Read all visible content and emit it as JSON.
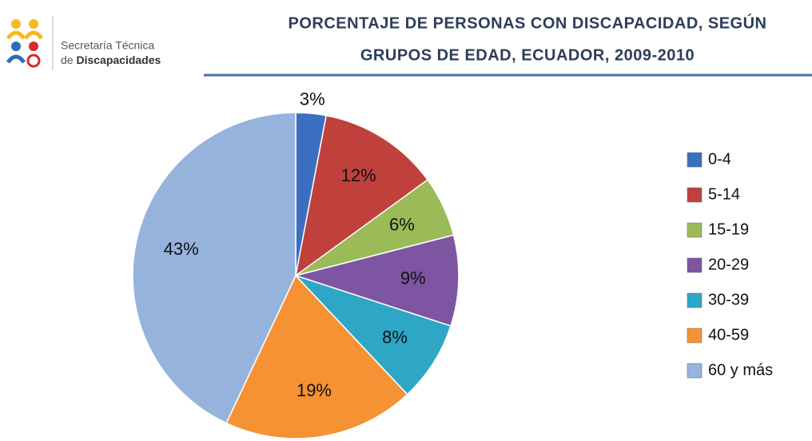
{
  "logo": {
    "line1": "Secretaría Técnica",
    "line2_prefix": "de",
    "line2_bold": "Discapacidades"
  },
  "chart_data": {
    "type": "pie",
    "title": [
      "PORCENTAJE DE PERSONAS CON DISCAPACIDAD, SEGÚN",
      "GRUPOS DE EDAD, ECUADOR, 2009-2010"
    ],
    "categories": [
      "0-4",
      "5-14",
      "15-19",
      "20-29",
      "30-39",
      "40-59",
      "60 y más"
    ],
    "values": [
      3,
      12,
      6,
      9,
      8,
      19,
      43
    ],
    "value_labels": [
      "3%",
      "12%",
      "6%",
      "9%",
      "8%",
      "19%",
      "43%"
    ],
    "colors": [
      "#3d6fc0",
      "#c0403c",
      "#9bbb59",
      "#7d55a3",
      "#2ea6c6",
      "#f59233",
      "#95b3dc"
    ],
    "legend": "right"
  }
}
